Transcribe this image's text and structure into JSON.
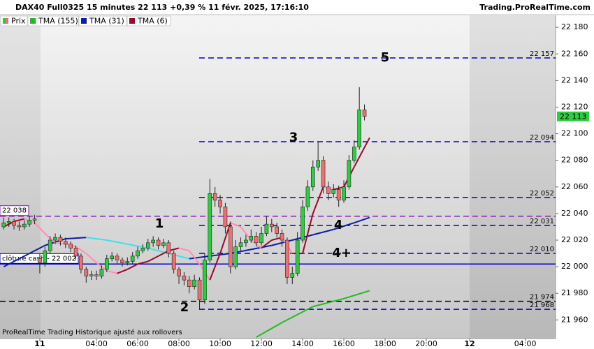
{
  "chart_data": {
    "type": "candlestick",
    "title": "DAX40 Full0325 15 minutes 22 113 +0,39 % 11 févr. 2025, 17:16:10",
    "source": "Trading.ProRealTime.com",
    "footer": "ProRealTime Trading  Historique ajusté aux rollovers",
    "price_name": "Prix",
    "bull_color": "#2ecc40",
    "bear_color": "#f07070",
    "xlim": [
      -0.68,
      26.27
    ],
    "ylim": [
      21946,
      22189
    ],
    "yticks": [
      {
        "value": 22180,
        "label": "22 180"
      },
      {
        "value": 22160,
        "label": "22 160"
      },
      {
        "value": 22140,
        "label": "22 140"
      },
      {
        "value": 22120,
        "label": "22 120"
      },
      {
        "value": 22100,
        "label": "22 100"
      },
      {
        "value": 22080,
        "label": "22 080"
      },
      {
        "value": 22060,
        "label": "22 060"
      },
      {
        "value": 22040,
        "label": "22 040"
      },
      {
        "value": 22020,
        "label": "22 020"
      },
      {
        "value": 22000,
        "label": "22 000"
      },
      {
        "value": 21980,
        "label": "21 980"
      },
      {
        "value": 21960,
        "label": "21 960"
      }
    ],
    "xticks": [
      {
        "value": 1.25,
        "label": "11"
      },
      {
        "value": 4,
        "label": "04:00"
      },
      {
        "value": 6,
        "label": "06:00"
      },
      {
        "value": 8,
        "label": "08:00"
      },
      {
        "value": 10,
        "label": "10:00"
      },
      {
        "value": 12,
        "label": "12:00"
      },
      {
        "value": 14,
        "label": "14:00"
      },
      {
        "value": 16,
        "label": "16:00"
      },
      {
        "value": 18,
        "label": "18:00"
      },
      {
        "value": 20,
        "label": "20:00"
      },
      {
        "value": 22.1,
        "label": "12"
      },
      {
        "value": 24.8,
        "label": "04:00"
      }
    ],
    "x": [
      -0.5,
      -0.25,
      0,
      0.25,
      0.5,
      0.75,
      1,
      1.25,
      1.5,
      1.75,
      2,
      2.25,
      2.5,
      2.75,
      3,
      3.25,
      3.5,
      3.75,
      4,
      4.25,
      4.5,
      4.75,
      5,
      5.25,
      5.5,
      5.75,
      6,
      6.25,
      6.5,
      6.75,
      7,
      7.25,
      7.5,
      7.75,
      8,
      8.25,
      8.5,
      8.75,
      9,
      9.25,
      9.5,
      9.75,
      10,
      10.25,
      10.5,
      10.75,
      11,
      11.25,
      11.5,
      11.75,
      12,
      12.25,
      12.5,
      12.75,
      13,
      13.25,
      13.5,
      13.75,
      14,
      14.25,
      14.5,
      14.75,
      15,
      15.25,
      15.5,
      15.75,
      16,
      16.25,
      16.5,
      16.75,
      17
    ],
    "ohlc": [
      [
        22030,
        22037,
        22028,
        22033
      ],
      [
        22033,
        22037,
        22030,
        22034
      ],
      [
        22034,
        22036,
        22028,
        22031
      ],
      [
        22031,
        22034,
        22027,
        22030
      ],
      [
        22030,
        22035,
        22028,
        22032
      ],
      [
        22032,
        22038,
        22030,
        22035
      ],
      [
        22035,
        22039,
        22032,
        22036
      ],
      [
        22006,
        22010,
        21995,
        22003
      ],
      [
        22003,
        22015,
        22000,
        22012
      ],
      [
        22012,
        22023,
        22010,
        22020
      ],
      [
        22020,
        22025,
        22017,
        22022
      ],
      [
        22022,
        22024,
        22016,
        22019
      ],
      [
        22019,
        22022,
        22014,
        22017
      ],
      [
        22017,
        22019,
        22011,
        22014
      ],
      [
        22014,
        22016,
        22005,
        22008
      ],
      [
        22008,
        22010,
        21995,
        21998
      ],
      [
        21998,
        22000,
        21988,
        21993
      ],
      [
        21993,
        21997,
        21990,
        21994
      ],
      [
        21994,
        21997,
        21990,
        21993
      ],
      [
        21993,
        22001,
        21991,
        21998
      ],
      [
        21998,
        22009,
        21996,
        22006
      ],
      [
        22006,
        22011,
        22004,
        22008
      ],
      [
        22008,
        22010,
        22002,
        22005
      ],
      [
        22005,
        22007,
        22000,
        22003
      ],
      [
        22003,
        22007,
        22001,
        22004
      ],
      [
        22004,
        22011,
        22002,
        22008
      ],
      [
        22008,
        22015,
        22006,
        22012
      ],
      [
        22012,
        22017,
        22010,
        22014
      ],
      [
        22014,
        22021,
        22012,
        22018
      ],
      [
        22018,
        22023,
        22015,
        22020
      ],
      [
        22020,
        22022,
        22013,
        22016
      ],
      [
        22016,
        22021,
        22014,
        22018
      ],
      [
        22018,
        22020,
        22007,
        22010
      ],
      [
        22010,
        22012,
        21995,
        21998
      ],
      [
        21998,
        22000,
        21987,
        21993
      ],
      [
        21993,
        21996,
        21986,
        21990
      ],
      [
        21990,
        21993,
        21980,
        21985
      ],
      [
        21985,
        21994,
        21983,
        21990
      ],
      [
        21990,
        21992,
        21968,
        21975
      ],
      [
        21975,
        22010,
        21972,
        22005
      ],
      [
        22005,
        22066,
        22003,
        22055
      ],
      [
        22055,
        22060,
        22045,
        22050
      ],
      [
        22050,
        22054,
        22040,
        22045
      ],
      [
        22045,
        22048,
        22025,
        22030
      ],
      [
        22030,
        22034,
        21995,
        22000
      ],
      [
        22000,
        22020,
        21998,
        22015
      ],
      [
        22015,
        22022,
        22012,
        22018
      ],
      [
        22018,
        22024,
        22015,
        22020
      ],
      [
        22020,
        22028,
        22018,
        22023
      ],
      [
        22023,
        22026,
        22015,
        22018
      ],
      [
        22018,
        22030,
        22016,
        22025
      ],
      [
        22025,
        22038,
        22023,
        22032
      ],
      [
        22032,
        22036,
        22026,
        22030
      ],
      [
        22030,
        22033,
        22022,
        22025
      ],
      [
        22025,
        22028,
        22015,
        22020
      ],
      [
        22020,
        22022,
        21987,
        21992
      ],
      [
        21992,
        22000,
        21987,
        21995
      ],
      [
        21995,
        22026,
        21993,
        22020
      ],
      [
        22020,
        22050,
        22018,
        22045
      ],
      [
        22045,
        22065,
        22042,
        22060
      ],
      [
        22060,
        22080,
        22057,
        22075
      ],
      [
        22075,
        22094,
        22072,
        22080
      ],
      [
        22080,
        22083,
        22055,
        22060
      ],
      [
        22060,
        22064,
        22050,
        22055
      ],
      [
        22055,
        22062,
        22052,
        22058
      ],
      [
        22058,
        22061,
        22045,
        22050
      ],
      [
        22050,
        22065,
        22048,
        22060
      ],
      [
        22060,
        22084,
        22058,
        22080
      ],
      [
        22080,
        22095,
        22078,
        22090
      ],
      [
        22090,
        22135,
        22088,
        22118
      ],
      [
        22118,
        22122,
        22110,
        22113
      ]
    ],
    "last": {
      "value": 22113,
      "label": "22 113"
    },
    "series": [
      {
        "name": "TMA (155)",
        "color": "#22bb22",
        "down_color": "#22bb22",
        "x": [
          11.75,
          13,
          14.5,
          16,
          17.25
        ],
        "values": [
          21947,
          21958,
          21970,
          21976,
          21982
        ]
      },
      {
        "name": "TMA (31)",
        "color": "#0a1ea8",
        "down_color": "#40e0e8",
        "x": [
          -0.5,
          0.5,
          1.5,
          2.5,
          3.5,
          4.5,
          5.5,
          6.5,
          7.5,
          8.5,
          9.5,
          10.5,
          11.5,
          12.5,
          13.5,
          14.5,
          15.5,
          16.5,
          17.25
        ],
        "values": [
          22000,
          22008,
          22016,
          22021,
          22022,
          22020,
          22017,
          22014,
          22010,
          22006,
          22008,
          22010,
          22013,
          22016,
          22020,
          22024,
          22028,
          22033,
          22037
        ]
      },
      {
        "name": "TMA (6)",
        "color": "#9a0a2a",
        "down_color": "#ff8fb0",
        "x": [
          -0.5,
          0,
          0.5,
          1,
          1.5,
          2,
          2.5,
          3,
          3.5,
          4,
          4.5,
          5,
          5.5,
          6,
          6.5,
          7,
          7.5,
          8,
          8.5,
          9,
          9.5,
          10,
          10.5,
          11,
          11.5,
          12,
          12.5,
          13,
          13.5,
          14,
          14.5,
          15,
          15.5,
          16,
          16.5,
          17.25
        ],
        "values": [
          22030,
          22034,
          22036,
          22033,
          22025,
          22018,
          22017,
          22015,
          22010,
          22003,
          21997,
          21995,
          21998,
          22002,
          22004,
          22008,
          22012,
          22014,
          22012,
          22002,
          21990,
          22010,
          22033,
          22030,
          22020,
          22014,
          22020,
          22022,
          22010,
          22010,
          22040,
          22060,
          22058,
          22060,
          22075,
          22097
        ]
      }
    ],
    "levels": [
      {
        "value": 22157,
        "label": "22 157",
        "color": "#0000cc",
        "style": "dashed",
        "from": 8.98,
        "side": "right"
      },
      {
        "value": 22094,
        "label": "22 094",
        "color": "#0000cc",
        "style": "dashed",
        "from": 8.98,
        "side": "right"
      },
      {
        "value": 22052,
        "label": "22 052",
        "color": "#0000cc",
        "style": "dashed",
        "from": 8.98,
        "side": "right"
      },
      {
        "value": 22031,
        "label": "22 031",
        "color": "#0000cc",
        "style": "dashed",
        "from": 8.98,
        "side": "right"
      },
      {
        "value": 22010,
        "label": "22 010",
        "color": "#0000cc",
        "style": "dashed",
        "from": 8.98,
        "side": "right"
      },
      {
        "value": 21974,
        "label": "21 974",
        "color": "#000000",
        "style": "dashed",
        "from": -0.68,
        "side": "right"
      },
      {
        "value": 21968,
        "label": "21 968",
        "color": "#0000cc",
        "style": "dashed",
        "from": 8.98,
        "side": "right"
      },
      {
        "value": 22038,
        "label": "22 038",
        "color": "#8a1ab0",
        "style": "dashed",
        "from": -0.68,
        "side": "left"
      },
      {
        "value": 22002,
        "label": "clôture cash -  22 002",
        "color": "#0000cc",
        "style": "solid",
        "from": -0.68,
        "side": "left"
      }
    ],
    "annotations": [
      {
        "text": "5",
        "x": 18,
        "y": 22157
      },
      {
        "text": "3",
        "x": 13.56,
        "y": 22097
      },
      {
        "text": "4",
        "x": 15.73,
        "y": 22031
      },
      {
        "text": "4+",
        "x": 15.9,
        "y": 22010
      },
      {
        "text": "2",
        "x": 8.27,
        "y": 21969
      },
      {
        "text": "1",
        "x": 7.05,
        "y": 22032
      }
    ]
  }
}
